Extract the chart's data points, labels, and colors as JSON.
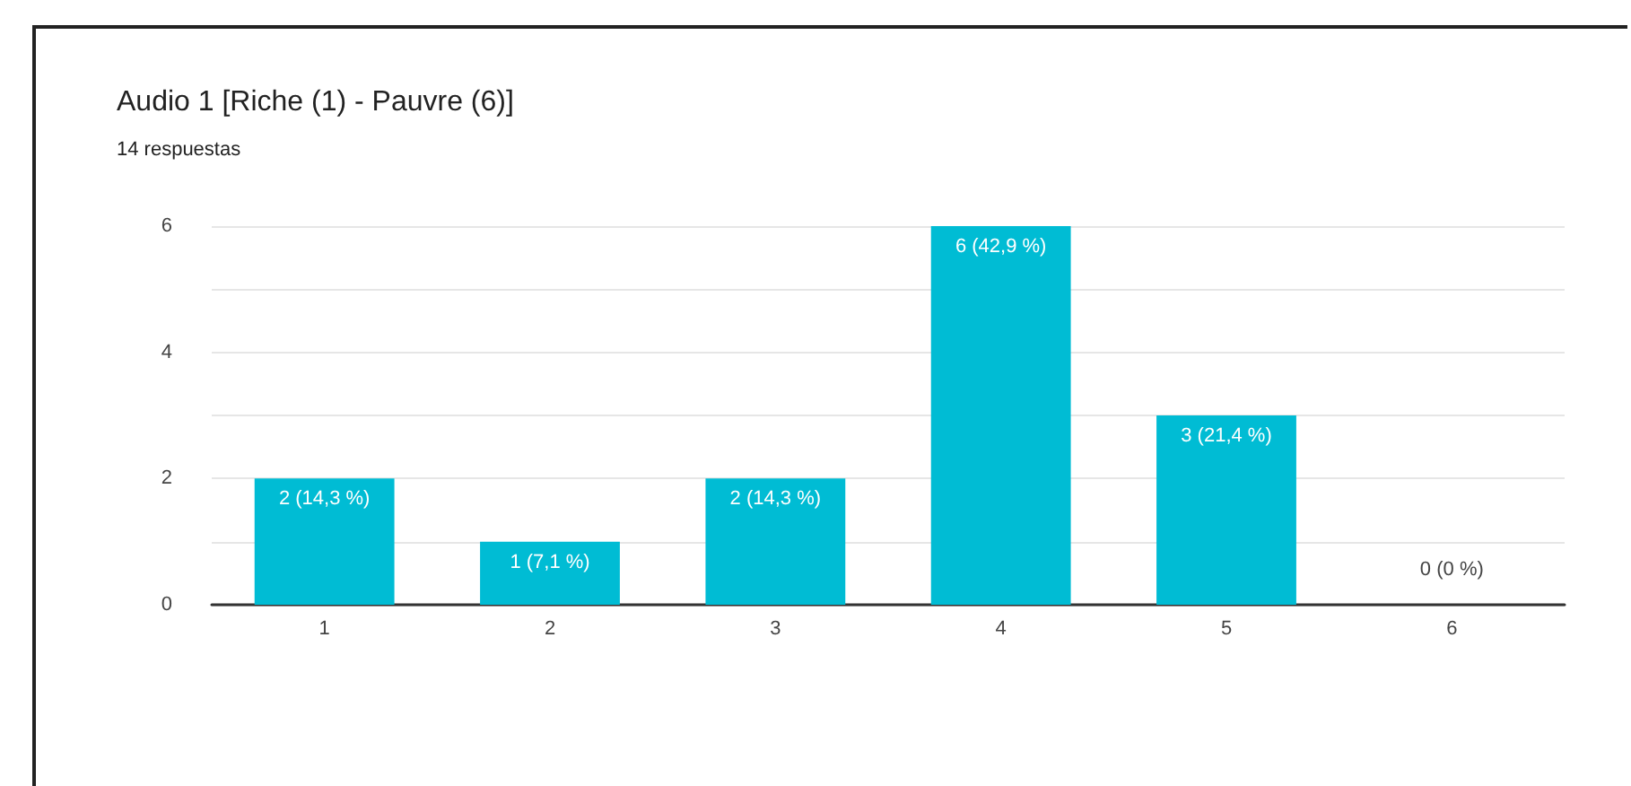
{
  "chart_data": {
    "type": "bar",
    "title": "Audio 1 [Riche (1) - Pauvre (6)]",
    "subtitle": "14 respuestas",
    "categories": [
      "1",
      "2",
      "3",
      "4",
      "5",
      "6"
    ],
    "values": [
      2,
      1,
      2,
      6,
      3,
      0
    ],
    "value_labels": [
      "2 (14,3 %)",
      "1 (7,1 %)",
      "2 (14,3 %)",
      "6 (42,9 %)",
      "3 (21,4 %)",
      "0 (0 %)"
    ],
    "color": "#00bcd4",
    "ylim": [
      0,
      6
    ],
    "yticks": [
      0,
      {
        "value": 1,
        "label": null
      },
      2,
      {
        "value": 3,
        "label": null
      },
      4,
      {
        "value": 5,
        "label": null
      },
      6
    ],
    "grid": "y"
  }
}
